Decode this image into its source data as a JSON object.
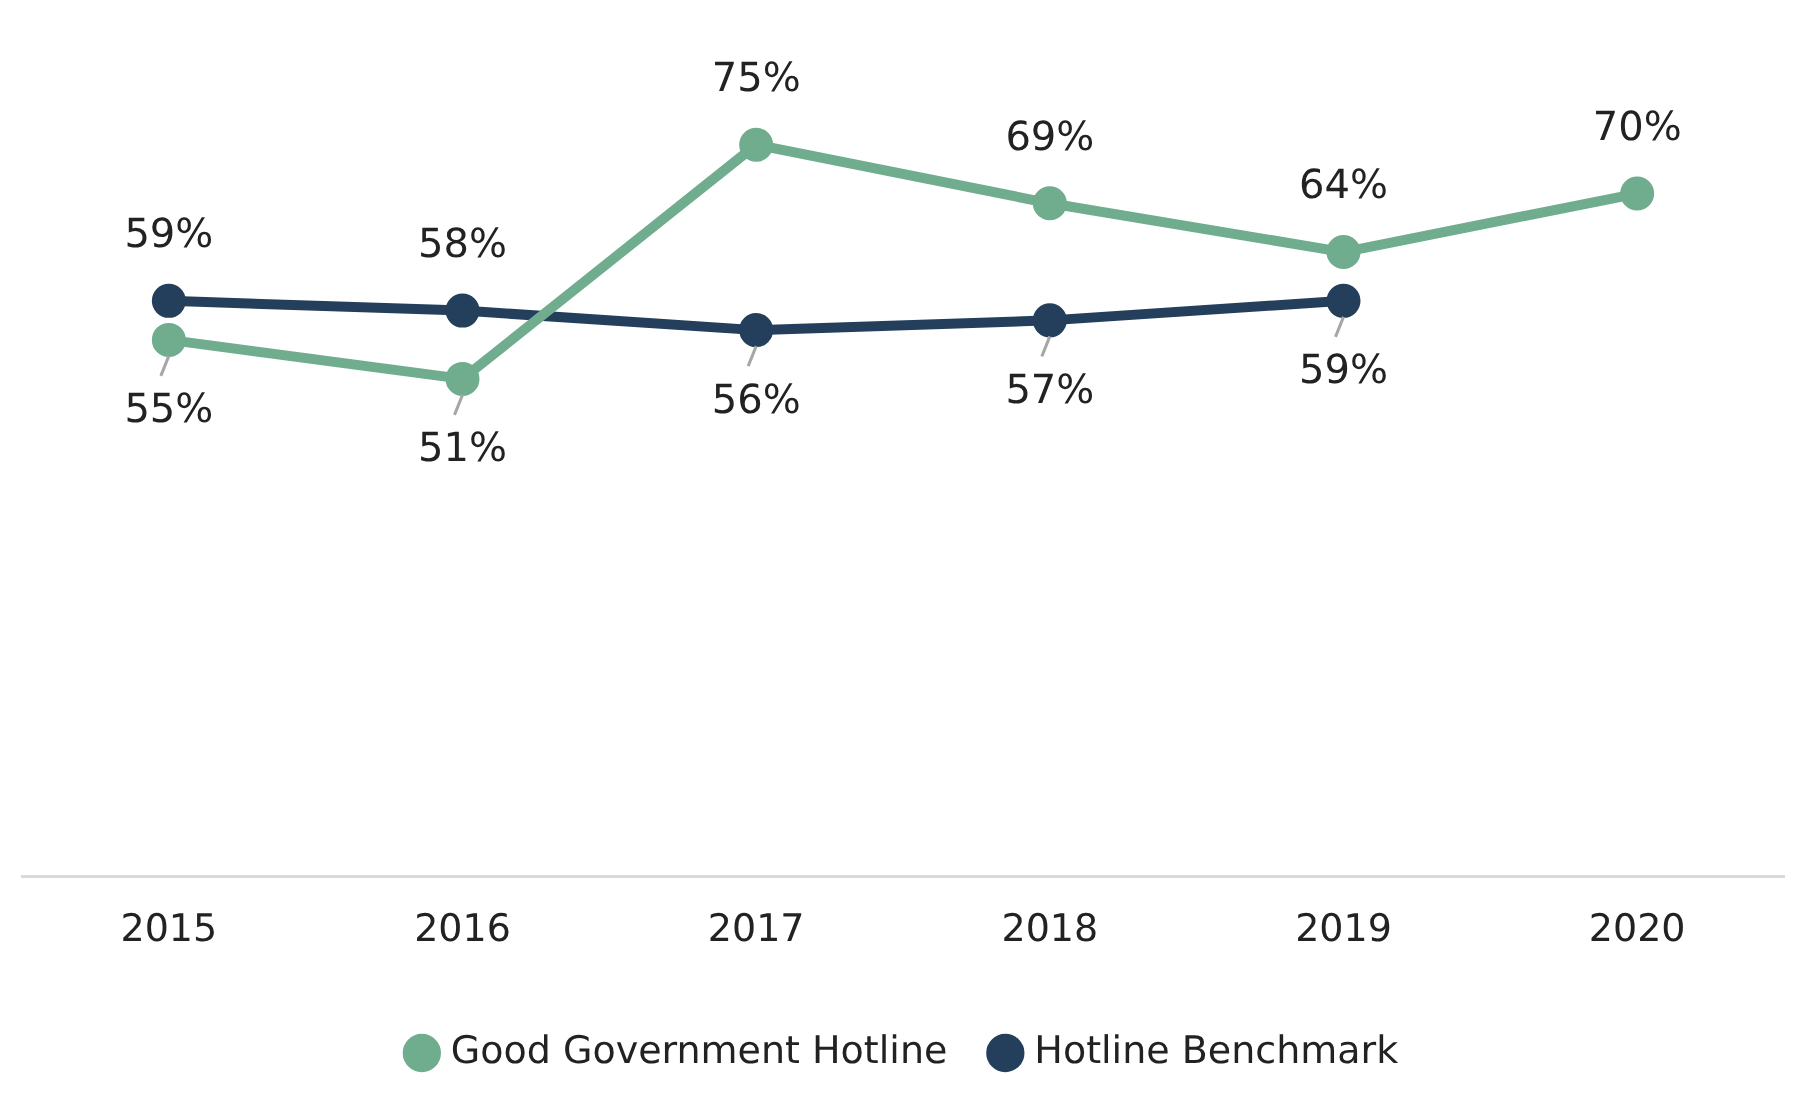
{
  "chart_data": {
    "type": "line",
    "categories": [
      "2015",
      "2016",
      "2017",
      "2018",
      "2019",
      "2020"
    ],
    "series": [
      {
        "name": "Good Government Hotline",
        "color": "#70ad8e",
        "values": [
          55,
          51,
          75,
          69,
          64,
          70
        ],
        "value_labels": [
          "55%",
          "51%",
          "75%",
          "69%",
          "64%",
          "70%"
        ]
      },
      {
        "name": "Hotline Benchmark",
        "color": "#243f5c",
        "values": [
          59,
          58,
          56,
          57,
          59,
          null
        ],
        "value_labels": [
          "59%",
          "58%",
          "56%",
          "57%",
          "59%",
          null
        ]
      }
    ],
    "tick_labels": "x",
    "grid": false,
    "legend": "bottom",
    "marker": "circle",
    "line_style": "solid"
  }
}
